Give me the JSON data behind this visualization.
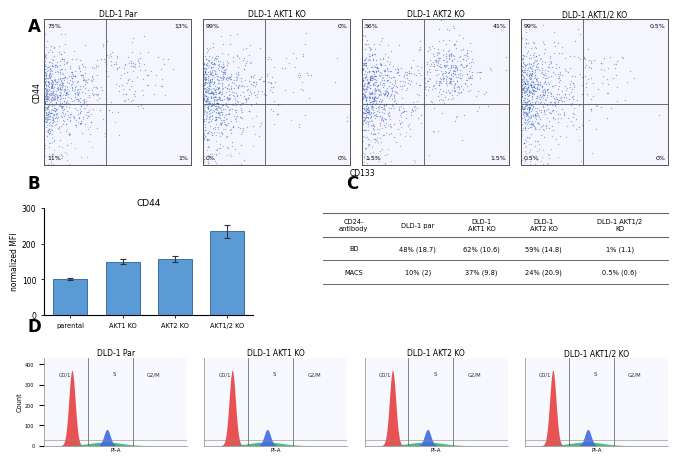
{
  "panel_A": {
    "titles": [
      "DLD-1 Par",
      "DLD-1 AKT1 KO",
      "DLD-1 AKT2 KO",
      "DLD-1 AKT1/2 KO"
    ],
    "quadrant_labels": [
      [
        "75%",
        "13%",
        "11%",
        "1%"
      ],
      [
        "99%",
        "0%",
        "0%",
        "0%"
      ],
      [
        "56%",
        "41%",
        "1.5%",
        "1.5%"
      ],
      [
        "99%",
        "0.5%",
        "0.5%",
        "0%"
      ]
    ],
    "axis_x": "CD133",
    "axis_y": "CD44"
  },
  "panel_B": {
    "title": "CD44",
    "categories": [
      "parental",
      "AKT1 KO",
      "AKT2 KO",
      "AKT1/2 KO"
    ],
    "values": [
      100,
      150,
      158,
      235
    ],
    "errors": [
      3,
      8,
      8,
      18
    ],
    "bar_color": "#5b9bd5",
    "ylabel": "normalized MFI",
    "ylim": [
      0,
      300
    ],
    "yticks": [
      0,
      100,
      200,
      300
    ]
  },
  "panel_C": {
    "headers": [
      "CD24-\nantibody",
      "DLD-1 par",
      "DLD-1\nAKT1 KO",
      "DLD-1\nAKT2 KO",
      "DLD-1 AKT1/2\nKO"
    ],
    "rows": [
      [
        "BD",
        "48% (18.7)",
        "62% (10.6)",
        "59% (14.8)",
        "1% (1.1)"
      ],
      [
        "MACS",
        "10% (2)",
        "37% (9.8)",
        "24% (20.9)",
        "0.5% (0.6)"
      ]
    ]
  },
  "panel_D": {
    "titles": [
      "DLD-1 Par",
      "DLD-1 AKT1 KO",
      "DLD-1 AKT2 KO",
      "DLD-1 AKT1/2 KO"
    ],
    "phase_labels": [
      "G0/1",
      "S",
      "G2/M"
    ],
    "colors": [
      "#e84040",
      "#3cb371",
      "#4169e1"
    ],
    "xlabel": "PI-A",
    "ylabel": "Count"
  },
  "label_color": "#000000",
  "panel_label_fontsize": 12,
  "bg_color": "#ffffff"
}
